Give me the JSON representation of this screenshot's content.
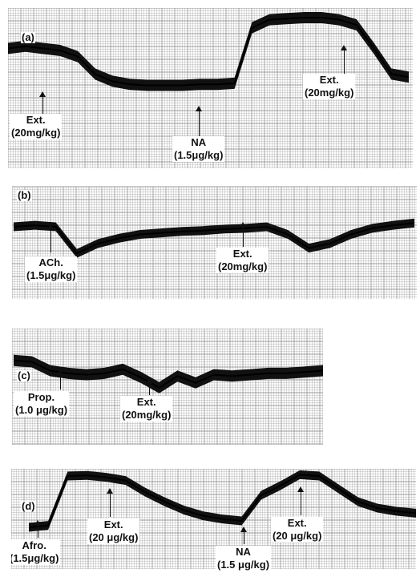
{
  "chart_data": [
    {
      "type": "line",
      "panel": "(a)",
      "annotations": [
        {
          "name": "Ext.",
          "dose": "(20mg/kg)"
        },
        {
          "name": "NA",
          "dose": "(1.5μg/kg)"
        },
        {
          "name": "Ext.",
          "dose": "(20mg/kg)"
        }
      ],
      "series": [
        {
          "values": [
            0.7,
            0.72,
            0.7,
            0.68,
            0.62,
            0.45,
            0.38,
            0.35,
            0.34,
            0.34,
            0.34,
            0.35,
            0.35,
            0.36,
            0.9,
            0.98,
            0.99,
            1.0,
            1.0,
            0.98,
            0.93,
            0.7,
            0.45,
            0.42
          ]
        }
      ]
    },
    {
      "type": "line",
      "panel": "(b)",
      "annotations": [
        {
          "name": "ACh.",
          "dose": "(1.5μg/kg)"
        },
        {
          "name": "Ext.",
          "dose": "(20mg/kg)"
        }
      ],
      "series": [
        {
          "values": [
            0.6,
            0.62,
            0.6,
            0.25,
            0.38,
            0.45,
            0.5,
            0.52,
            0.54,
            0.55,
            0.57,
            0.58,
            0.6,
            0.5,
            0.32,
            0.38,
            0.5,
            0.58,
            0.62,
            0.65
          ]
        }
      ]
    },
    {
      "type": "line",
      "panel": "(c)",
      "annotations": [
        {
          "name": "Prop.",
          "dose": "(1.0 μg/kg)"
        },
        {
          "name": "Ext.",
          "dose": "(20mg/kg)"
        }
      ],
      "series": [
        {
          "values": [
            0.65,
            0.63,
            0.5,
            0.46,
            0.44,
            0.46,
            0.52,
            0.4,
            0.25,
            0.42,
            0.32,
            0.44,
            0.42,
            0.44,
            0.46,
            0.46,
            0.48,
            0.5
          ]
        }
      ]
    },
    {
      "type": "line",
      "panel": "(d)",
      "annotations": [
        {
          "name": "Afro.",
          "dose": "(1.5μg/kg)"
        },
        {
          "name": "Ext.",
          "dose": "(20 μg/kg)"
        },
        {
          "name": "NA",
          "dose": "(1.5 μg/kg)"
        },
        {
          "name": "Ext.",
          "dose": "(20 μg/kg)"
        }
      ],
      "series": [
        {
          "values": [
            0.15,
            0.18,
            0.95,
            0.96,
            0.93,
            0.88,
            0.7,
            0.55,
            0.42,
            0.33,
            0.28,
            0.25,
            0.65,
            0.8,
            0.97,
            0.95,
            0.75,
            0.55,
            0.45,
            0.4,
            0.37
          ]
        }
      ]
    }
  ]
}
